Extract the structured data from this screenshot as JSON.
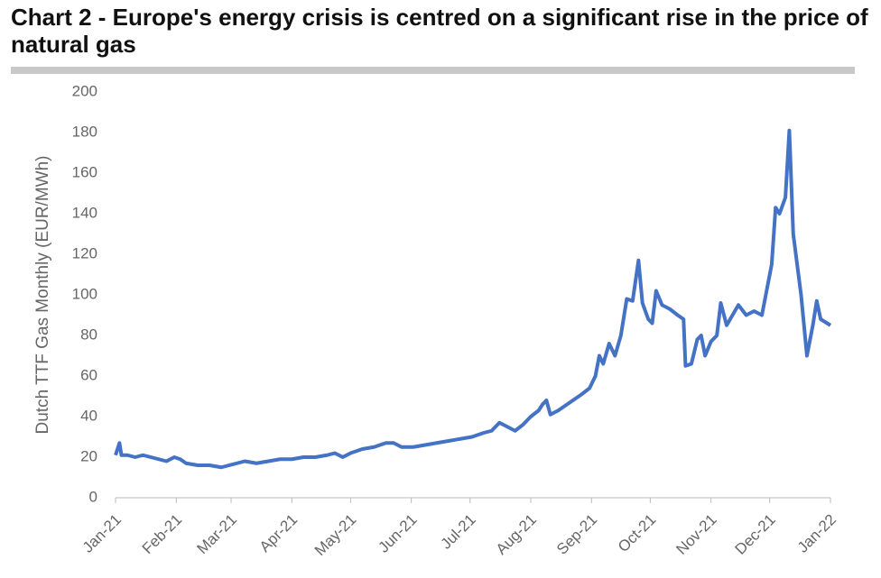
{
  "chart_data": {
    "type": "line",
    "title": "Chart 2 - Europe's energy crisis is centred on a significant rise in the price of natural gas",
    "y_label": "Dutch TTF Gas Monthly (EUR/MWh)",
    "x": [
      0,
      2,
      3,
      6,
      10,
      14,
      18,
      22,
      26,
      30,
      33,
      36,
      42,
      48,
      54,
      58,
      62,
      66,
      72,
      78,
      84,
      90,
      96,
      102,
      108,
      112,
      116,
      120,
      126,
      132,
      138,
      142,
      146,
      152,
      158,
      164,
      170,
      176,
      182,
      188,
      192,
      196,
      200,
      204,
      208,
      212,
      216,
      218,
      220,
      222,
      226,
      232,
      238,
      242,
      245,
      247,
      249,
      252,
      255,
      258,
      261,
      264,
      267,
      269,
      272,
      274,
      276,
      279,
      283,
      287,
      290,
      291,
      294,
      297,
      299,
      301,
      304,
      307,
      309,
      312,
      315,
      318,
      322,
      326,
      330,
      332,
      335,
      337,
      339,
      342,
      344,
      346,
      350,
      353,
      356,
      358,
      360,
      365
    ],
    "series": [
      {
        "name": "Dutch TTF Gas",
        "color": "#4472c4",
        "values": [
          21,
          27,
          21,
          21,
          20,
          21,
          20,
          19,
          18,
          20,
          19,
          17,
          16,
          16,
          15,
          16,
          17,
          18,
          17,
          18,
          19,
          19,
          20,
          20,
          21,
          22,
          20,
          22,
          24,
          25,
          27,
          27,
          25,
          25,
          26,
          27,
          28,
          29,
          30,
          32,
          33,
          37,
          35,
          33,
          36,
          40,
          43,
          46,
          48,
          41,
          43,
          47,
          51,
          54,
          60,
          70,
          66,
          76,
          70,
          80,
          98,
          97,
          117,
          96,
          88,
          86,
          102,
          95,
          93,
          90,
          88,
          65,
          66,
          78,
          80,
          70,
          77,
          80,
          96,
          85,
          90,
          95,
          90,
          92,
          90,
          100,
          115,
          143,
          140,
          148,
          181,
          130,
          100,
          70,
          85,
          97,
          88,
          85
        ]
      }
    ],
    "xlim": [
      0,
      365
    ],
    "xticks": [
      {
        "value": 0,
        "label": "Jan-21"
      },
      {
        "value": 31,
        "label": "Feb-21"
      },
      {
        "value": 59,
        "label": "Mar-21"
      },
      {
        "value": 90,
        "label": "Apr-21"
      },
      {
        "value": 120,
        "label": "May-21"
      },
      {
        "value": 151,
        "label": "Jun-21"
      },
      {
        "value": 181,
        "label": "Jul-21"
      },
      {
        "value": 212,
        "label": "Aug-21"
      },
      {
        "value": 243,
        "label": "Sep-21"
      },
      {
        "value": 273,
        "label": "Oct-21"
      },
      {
        "value": 304,
        "label": "Nov-21"
      },
      {
        "value": 334,
        "label": "Dec-21"
      },
      {
        "value": 365,
        "label": "Jan-22"
      }
    ],
    "ylim": [
      0,
      200
    ],
    "yticks": [
      0,
      20,
      40,
      60,
      80,
      100,
      120,
      140,
      160,
      180,
      200
    ],
    "grid": false
  }
}
